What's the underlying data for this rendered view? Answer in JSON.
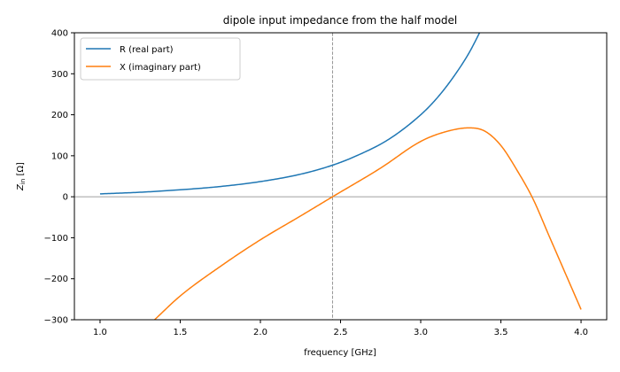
{
  "chart_data": {
    "type": "line",
    "title": "dipole input impedance from the half model",
    "xlabel": "frequency [GHz]",
    "ylabel": "Z_in [Ω]",
    "ylabel_main": "Z",
    "ylabel_sub": "in",
    "ylabel_unit": " [Ω]",
    "xlim": [
      0.84,
      4.16
    ],
    "ylim": [
      -300,
      400
    ],
    "xticks": [
      1.0,
      1.5,
      2.0,
      2.5,
      3.0,
      3.5,
      4.0
    ],
    "xtick_labels": [
      "1.0",
      "1.5",
      "2.0",
      "2.5",
      "3.0",
      "3.5",
      "4.0"
    ],
    "yticks": [
      -300,
      -200,
      -100,
      0,
      100,
      200,
      300,
      400
    ],
    "ytick_labels": [
      "−300",
      "−200",
      "−100",
      "0",
      "100",
      "200",
      "300",
      "400"
    ],
    "grid": false,
    "legend": "top-left",
    "reference_lines": [
      {
        "orientation": "horizontal",
        "value": 0,
        "style": "solid",
        "color": "#808080"
      },
      {
        "orientation": "vertical",
        "value": 2.45,
        "style": "dashed",
        "color": "#808080"
      }
    ],
    "series": [
      {
        "name": "R (real part)",
        "color": "#1f77b4",
        "x": [
          1.0,
          1.25,
          1.5,
          1.75,
          2.0,
          2.25,
          2.45,
          2.6,
          2.8,
          3.0,
          3.1,
          3.2,
          3.3,
          3.38
        ],
        "y": [
          7,
          11,
          17,
          25,
          37,
          55,
          77,
          100,
          140,
          200,
          240,
          290,
          350,
          410
        ]
      },
      {
        "name": "X (imaginary part)",
        "color": "#ff7f0e",
        "x": [
          1.34,
          1.5,
          1.75,
          2.0,
          2.25,
          2.45,
          2.75,
          3.0,
          3.15,
          3.3,
          3.4,
          3.5,
          3.6,
          3.7,
          3.8,
          3.9,
          4.0
        ],
        "y": [
          -300,
          -242,
          -170,
          -105,
          -47,
          0,
          70,
          135,
          158,
          168,
          160,
          125,
          65,
          -5,
          -95,
          -185,
          -275
        ]
      }
    ]
  }
}
